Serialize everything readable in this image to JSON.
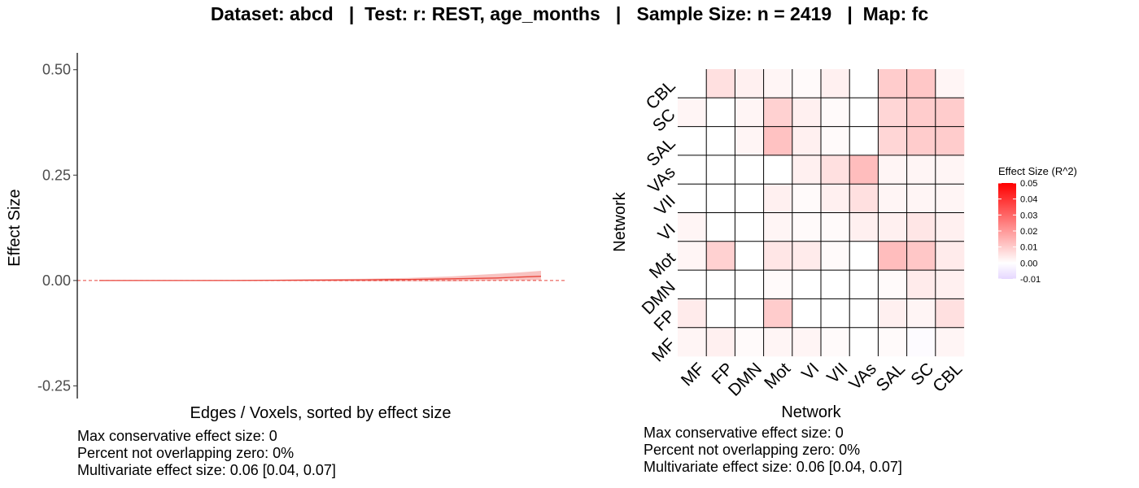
{
  "title": "Dataset: abcd   |  Test: r: REST, age_months   |   Sample Size: n = 2419   |  Map: fc",
  "colors": {
    "line": "#e8463c",
    "ribbon": "#f8c2c0",
    "zero_line": "#e8463c",
    "heat_high": "#ff0000",
    "heat_mid": "#ffffff",
    "heat_low": "#e6d7ff"
  },
  "chart_data": [
    {
      "type": "line",
      "xlabel": "Edges / Voxels, sorted by effect size",
      "ylabel": "Effect Size",
      "ylim": [
        -0.28,
        0.54
      ],
      "yticks": [
        -0.25,
        0.0,
        0.25,
        0.5
      ],
      "ytick_labels": [
        "-0.25",
        "0.00",
        "0.25",
        "0.50"
      ],
      "zero_reference_line": true,
      "grid": false,
      "x": [
        0,
        0.1,
        0.2,
        0.3,
        0.4,
        0.5,
        0.6,
        0.65,
        0.7,
        0.75,
        0.8,
        0.85,
        0.9,
        0.95,
        1.0
      ],
      "series": [
        {
          "values": [
            0.0,
            0.0,
            0.0,
            0.0,
            0.0005,
            0.001,
            0.0015,
            0.002,
            0.0025,
            0.003,
            0.004,
            0.005,
            0.006,
            0.008,
            0.01
          ],
          "lower": [
            -0.001,
            -0.001,
            -0.001,
            -0.001,
            -0.001,
            -0.0015,
            -0.002,
            -0.002,
            -0.002,
            -0.002,
            -0.002,
            -0.001,
            0.0,
            0.0,
            0.001
          ],
          "upper": [
            0.001,
            0.001,
            0.001,
            0.0015,
            0.002,
            0.003,
            0.004,
            0.005,
            0.006,
            0.008,
            0.01,
            0.013,
            0.016,
            0.019,
            0.023
          ]
        }
      ],
      "stats": [
        "Max conservative effect size: 0",
        "Percent not overlapping zero: 0%",
        "Multivariate effect size: 0.06 [0.04, 0.07]"
      ]
    },
    {
      "type": "heatmap",
      "xlabel": "Network",
      "ylabel": "Network",
      "x_categories": [
        "MF",
        "FP",
        "DMN",
        "Mot",
        "VI",
        "VII",
        "VAs",
        "SAL",
        "SC",
        "CBL"
      ],
      "y_categories": [
        "MF",
        "FP",
        "DMN",
        "Mot",
        "VI",
        "VII",
        "VAs",
        "SAL",
        "SC",
        "CBL"
      ],
      "values": [
        [
          0.002,
          0.003,
          0.001,
          0.002,
          0.002,
          0.001,
          0.0,
          0.001,
          -0.001,
          0.002
        ],
        [
          0.004,
          0.0,
          0.0,
          0.01,
          0.0,
          0.0,
          0.0,
          0.003,
          0.002,
          0.006
        ],
        [
          0.0,
          0.0,
          0.0,
          0.001,
          0.0,
          0.0,
          0.0,
          0.001,
          0.004,
          0.003
        ],
        [
          0.002,
          0.009,
          0.0,
          0.005,
          0.004,
          0.001,
          0.0,
          0.013,
          0.011,
          0.004
        ],
        [
          0.002,
          0.0,
          0.0,
          0.002,
          0.001,
          0.001,
          0.003,
          0.003,
          0.005,
          0.003
        ],
        [
          0.0,
          0.0,
          0.0,
          0.003,
          0.001,
          0.003,
          0.006,
          0.002,
          0.002,
          0.002
        ],
        [
          0.0,
          0.0,
          0.0,
          0.0,
          0.003,
          0.006,
          0.013,
          0.002,
          0.002,
          0.002
        ],
        [
          0.0,
          0.0,
          0.002,
          0.012,
          0.003,
          0.001,
          0.0,
          0.008,
          0.01,
          0.01
        ],
        [
          0.002,
          0.0,
          0.002,
          0.009,
          0.003,
          0.001,
          0.0,
          0.008,
          0.01,
          0.01
        ],
        [
          0.0,
          0.006,
          0.003,
          0.002,
          0.001,
          0.003,
          0.0,
          0.01,
          0.011,
          0.002
        ]
      ],
      "legend": {
        "title": "Effect Size (R^2)",
        "placement": "right",
        "min": -0.01,
        "max": 0.05,
        "ticks": [
          0.05,
          0.04,
          0.03,
          0.02,
          0.01,
          0.0,
          -0.01
        ],
        "tick_labels": [
          "0.05",
          "0.04",
          "0.03",
          "0.02",
          "0.01",
          "0.00",
          "-0.01"
        ]
      },
      "stats": [
        "Max conservative effect size: 0",
        "Percent not overlapping zero: 0%",
        "Multivariate effect size: 0.06 [0.04, 0.07]"
      ]
    }
  ]
}
